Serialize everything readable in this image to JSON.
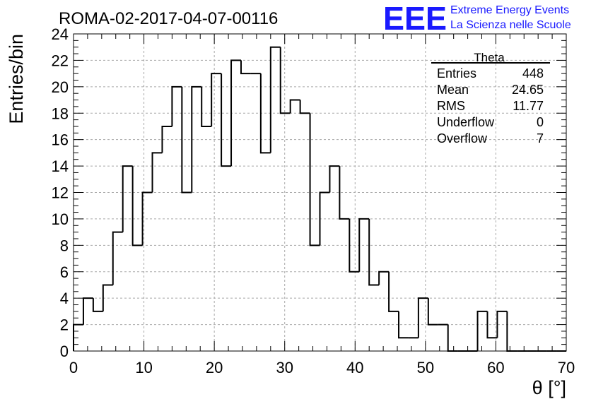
{
  "chart_data": {
    "type": "histogram",
    "title": "ROMA-02-2017-04-07-00116",
    "xlabel": "θ [°]",
    "ylabel": "Entries/bin",
    "xlim": [
      0,
      70
    ],
    "ylim": [
      0,
      24
    ],
    "xticks": [
      0,
      10,
      20,
      30,
      40,
      50,
      60,
      70
    ],
    "yticks": [
      0,
      2,
      4,
      6,
      8,
      10,
      12,
      14,
      16,
      18,
      20,
      22,
      24
    ],
    "grid": true,
    "bin_width": 1.4,
    "bin_edges_start": 0,
    "values": [
      2,
      4,
      3,
      5,
      9,
      14,
      8,
      12,
      15,
      17,
      20,
      12,
      20,
      17,
      21,
      14,
      22,
      21,
      21,
      15,
      23,
      18,
      19,
      18,
      8,
      12,
      14,
      10,
      6,
      10,
      5,
      6,
      3,
      1,
      1,
      4,
      2,
      2,
      0,
      0,
      0,
      3,
      1,
      3,
      0,
      0,
      0,
      0,
      0,
      0
    ],
    "stats_box": {
      "title": "Theta",
      "rows": [
        {
          "label": "Entries",
          "value": "448"
        },
        {
          "label": "Mean",
          "value": "24.65"
        },
        {
          "label": "RMS",
          "value": "11.77"
        },
        {
          "label": "Underflow",
          "value": "0"
        },
        {
          "label": "Overflow",
          "value": "7"
        }
      ],
      "placement": "top-right"
    }
  },
  "logo": {
    "mark": "EEE",
    "line1": "Extreme Energy Events",
    "line2": "La Scienza nelle Scuole",
    "color": "#1a1aff"
  }
}
